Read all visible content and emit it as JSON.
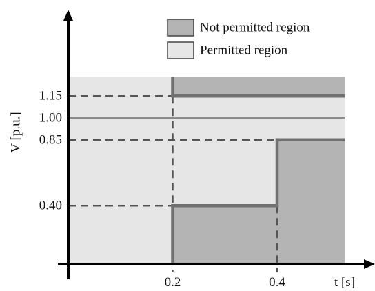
{
  "chart_data": {
    "type": "line",
    "xlabel": "t [s]",
    "ylabel": "V [p.u.]",
    "xlim": [
      0,
      0.7
    ],
    "ylim": [
      0,
      1.43
    ],
    "x_ticks": [
      "0.2",
      "0.4"
    ],
    "x_tick_values": [
      0.2,
      0.4
    ],
    "y_ticks": [
      "0.40",
      "0.85",
      "1.00",
      "1.15"
    ],
    "y_tick_values": [
      0.4,
      0.85,
      1.0,
      1.15
    ],
    "legend": [
      {
        "label": "Not permitted region",
        "color": "#b4b4b4"
      },
      {
        "label": "Permitted region",
        "color": "#e6e6e6"
      }
    ],
    "regions": {
      "permitted": {
        "x": [
          0,
          0.53
        ],
        "y": [
          0,
          1.28
        ]
      },
      "not_permitted_upper": {
        "x": [
          0.2,
          0.53
        ],
        "y_from": 1.15,
        "y_to": 1.28
      },
      "not_permitted_lower": [
        {
          "x": [
            0.2,
            0.4
          ],
          "y": [
            0,
            0.4
          ]
        },
        {
          "x": [
            0.4,
            0.53
          ],
          "y": [
            0,
            0.85
          ]
        }
      ]
    },
    "series": [
      {
        "role": "upper-limit",
        "x": [
          0.2,
          0.2,
          0.53
        ],
        "y": [
          1.28,
          1.15,
          1.15
        ]
      },
      {
        "role": "lower-limit",
        "x": [
          0.2,
          0.2,
          0.4,
          0.4,
          0.53
        ],
        "y": [
          0,
          0.4,
          0.4,
          0.85,
          0.85
        ]
      }
    ],
    "reference_lines": [
      1.0
    ],
    "colors": {
      "limit_line": "#707070",
      "dashed": "#555555",
      "not_permitted": "#b4b4b4",
      "permitted": "#e6e6e6",
      "axis": "#000000"
    }
  }
}
